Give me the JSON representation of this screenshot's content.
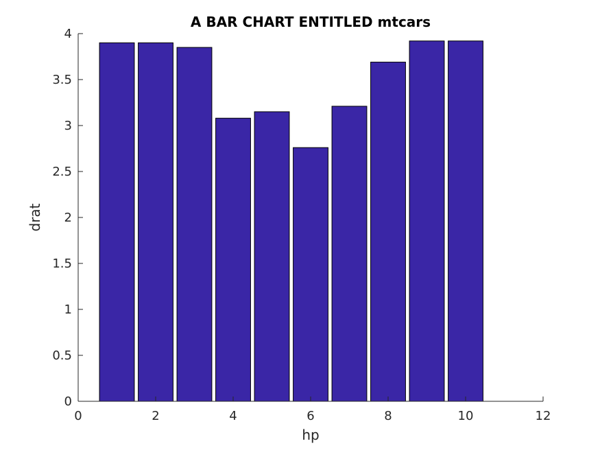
{
  "chart_data": {
    "type": "bar",
    "title": "A BAR CHART ENTITLED mtcars",
    "xlabel": "hp",
    "ylabel": "drat",
    "x": [
      1,
      2,
      3,
      4,
      5,
      6,
      7,
      8,
      9,
      10
    ],
    "values": [
      3.9,
      3.9,
      3.85,
      3.08,
      3.15,
      2.76,
      3.21,
      3.69,
      3.92,
      3.92
    ],
    "xlim": [
      0,
      12
    ],
    "ylim": [
      0,
      4
    ],
    "xticks": [
      "0",
      "2",
      "4",
      "6",
      "8",
      "10",
      "12"
    ],
    "yticks": [
      "0",
      "0.5",
      "1",
      "1.5",
      "2",
      "2.5",
      "3",
      "3.5",
      "4"
    ],
    "bar_color": "#3a26a6",
    "grid": false,
    "legend": "none"
  }
}
